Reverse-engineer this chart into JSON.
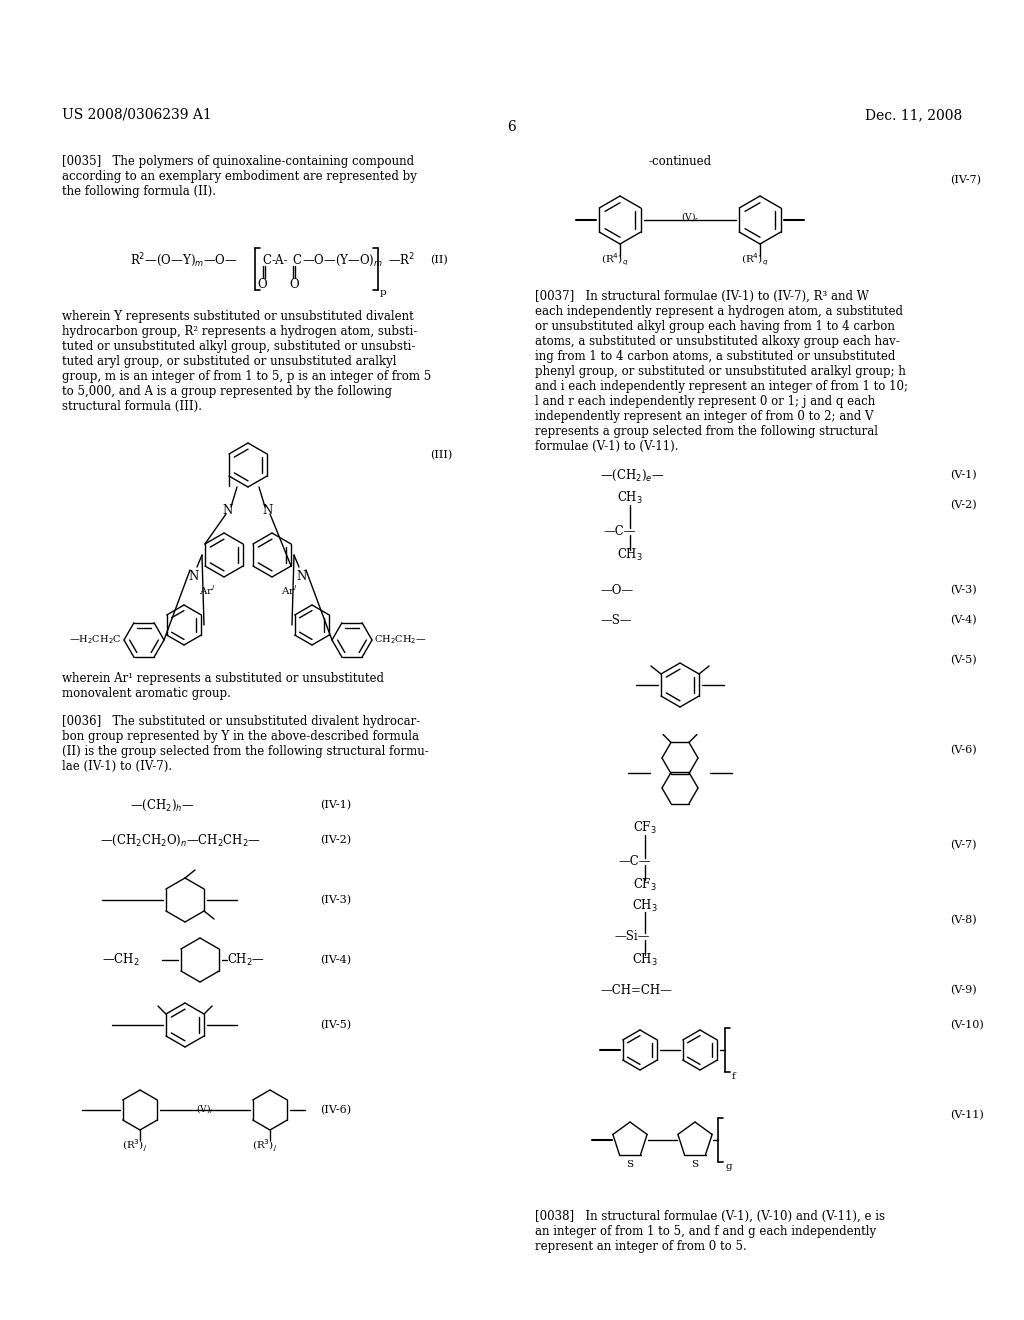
{
  "page_header_left": "US 2008/0306239 A1",
  "page_header_right": "Dec. 11, 2008",
  "page_number": "6",
  "background_color": "#ffffff",
  "text_color": "#000000",
  "font_size_body": 8.5,
  "font_size_label": 8.0,
  "font_size_header": 10.0,
  "paragraph_035": "[0035]   The polymers of quinoxaline-containing compound\naccording to an exemplary embodiment are represented by\nthe following formula (II).",
  "paragraph_037": "[0037]   In structural formulae (IV-1) to (IV-7), R³ and W\neach independently represent a hydrogen atom, a substituted\nor unsubstituted alkyl group each having from 1 to 4 carbon\natoms, a substituted or unsubstituted alkoxy group each hav-\ning from 1 to 4 carbon atoms, a substituted or unsubstituted\nphenyl group, or substituted or unsubstituted aralkyl group; h\nand i each independently represent an integer of from 1 to 10;\nl and r each independently represent 0 or 1; j and q each\nindependently represent an integer of from 0 to 2; and V\nrepresents a group selected from the following structural\nformulae (V-1) to (V-11).",
  "paragraph_036_title": "[0036]   The substituted or unsubstituted divalent hydrocar-\nbon group represented by Y in the above-described formula\n(II) is the group selected from the following structural formu-\nlae (IV-1) to (IV-7).",
  "paragraph_Ar": "wherein Ar¹ represents a substituted or unsubstituted\nmonovalent aromatic group.",
  "paragraph_wherein": "wherein Y represents substituted or unsubstituted divalent\nhydrocarbon group, R² represents a hydrogen atom, substi-\ntuted or unsubstituted alkyl group, substituted or unsubsti-\ntuted aryl group, or substituted or unsubstituted aralkyl\ngroup, m is an integer of from 1 to 5, p is an integer of from 5\nto 5,000, and A is a group represented by the following\nstructural formula (III).",
  "paragraph_038": "[0038]   In structural formulae (V-1), (V-10) and (V-11), e is\nan integer of from 1 to 5, and f and g each independently\nrepresent an integer of from 0 to 5.",
  "continued_label": "-continued"
}
